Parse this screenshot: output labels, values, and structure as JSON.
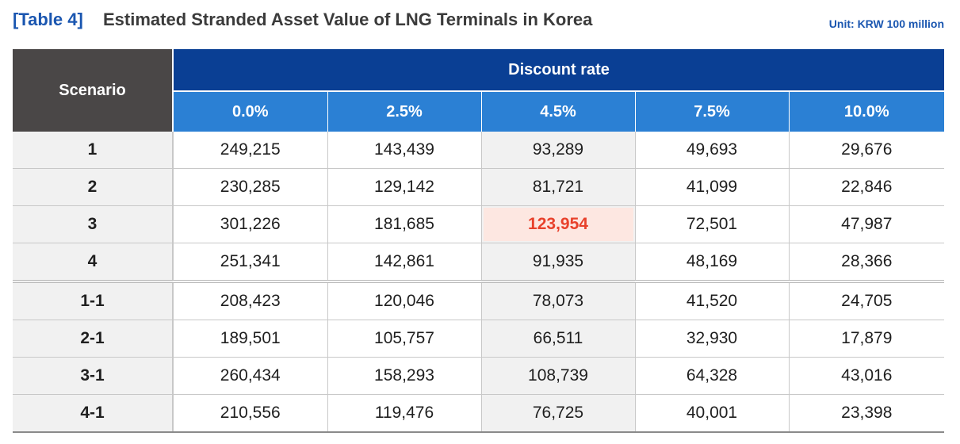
{
  "header": {
    "label": "[Table 4]",
    "title": "Estimated Stranded Asset Value of LNG Terminals in Korea",
    "unit": "Unit: KRW 100 million"
  },
  "table": {
    "scenario_header": "Scenario",
    "discount_header": "Discount rate",
    "rates": [
      "0.0%",
      "2.5%",
      "4.5%",
      "7.5%",
      "10.0%"
    ],
    "rows": [
      {
        "scenario": "1",
        "values": [
          "249,215",
          "143,439",
          "93,289",
          "49,693",
          "29,676"
        ]
      },
      {
        "scenario": "2",
        "values": [
          "230,285",
          "129,142",
          "81,721",
          "41,099",
          "22,846"
        ]
      },
      {
        "scenario": "3",
        "values": [
          "301,226",
          "181,685",
          "123,954",
          "72,501",
          "47,987"
        ]
      },
      {
        "scenario": "4",
        "values": [
          "251,341",
          "142,861",
          "91,935",
          "48,169",
          "28,366"
        ]
      },
      {
        "scenario": "1-1",
        "values": [
          "208,423",
          "120,046",
          "78,073",
          "41,520",
          "24,705"
        ]
      },
      {
        "scenario": "2-1",
        "values": [
          "189,501",
          "105,757",
          "66,511",
          "32,930",
          "17,879"
        ]
      },
      {
        "scenario": "3-1",
        "values": [
          "260,434",
          "158,293",
          "108,739",
          "64,328",
          "43,016"
        ]
      },
      {
        "scenario": "4-1",
        "values": [
          "210,556",
          "119,476",
          "76,725",
          "40,001",
          "23,398"
        ]
      }
    ],
    "highlighted_cell": {
      "row": 2,
      "col": 2
    }
  },
  "colors": {
    "title_accent": "#1a56b0",
    "scenario_header_bg": "#4a4747",
    "discount_header_bg": "#0a3f94",
    "rate_header_bg": "#2b80d4",
    "highlight_text": "#e8412b",
    "highlight_bg": "#fde7e1"
  }
}
